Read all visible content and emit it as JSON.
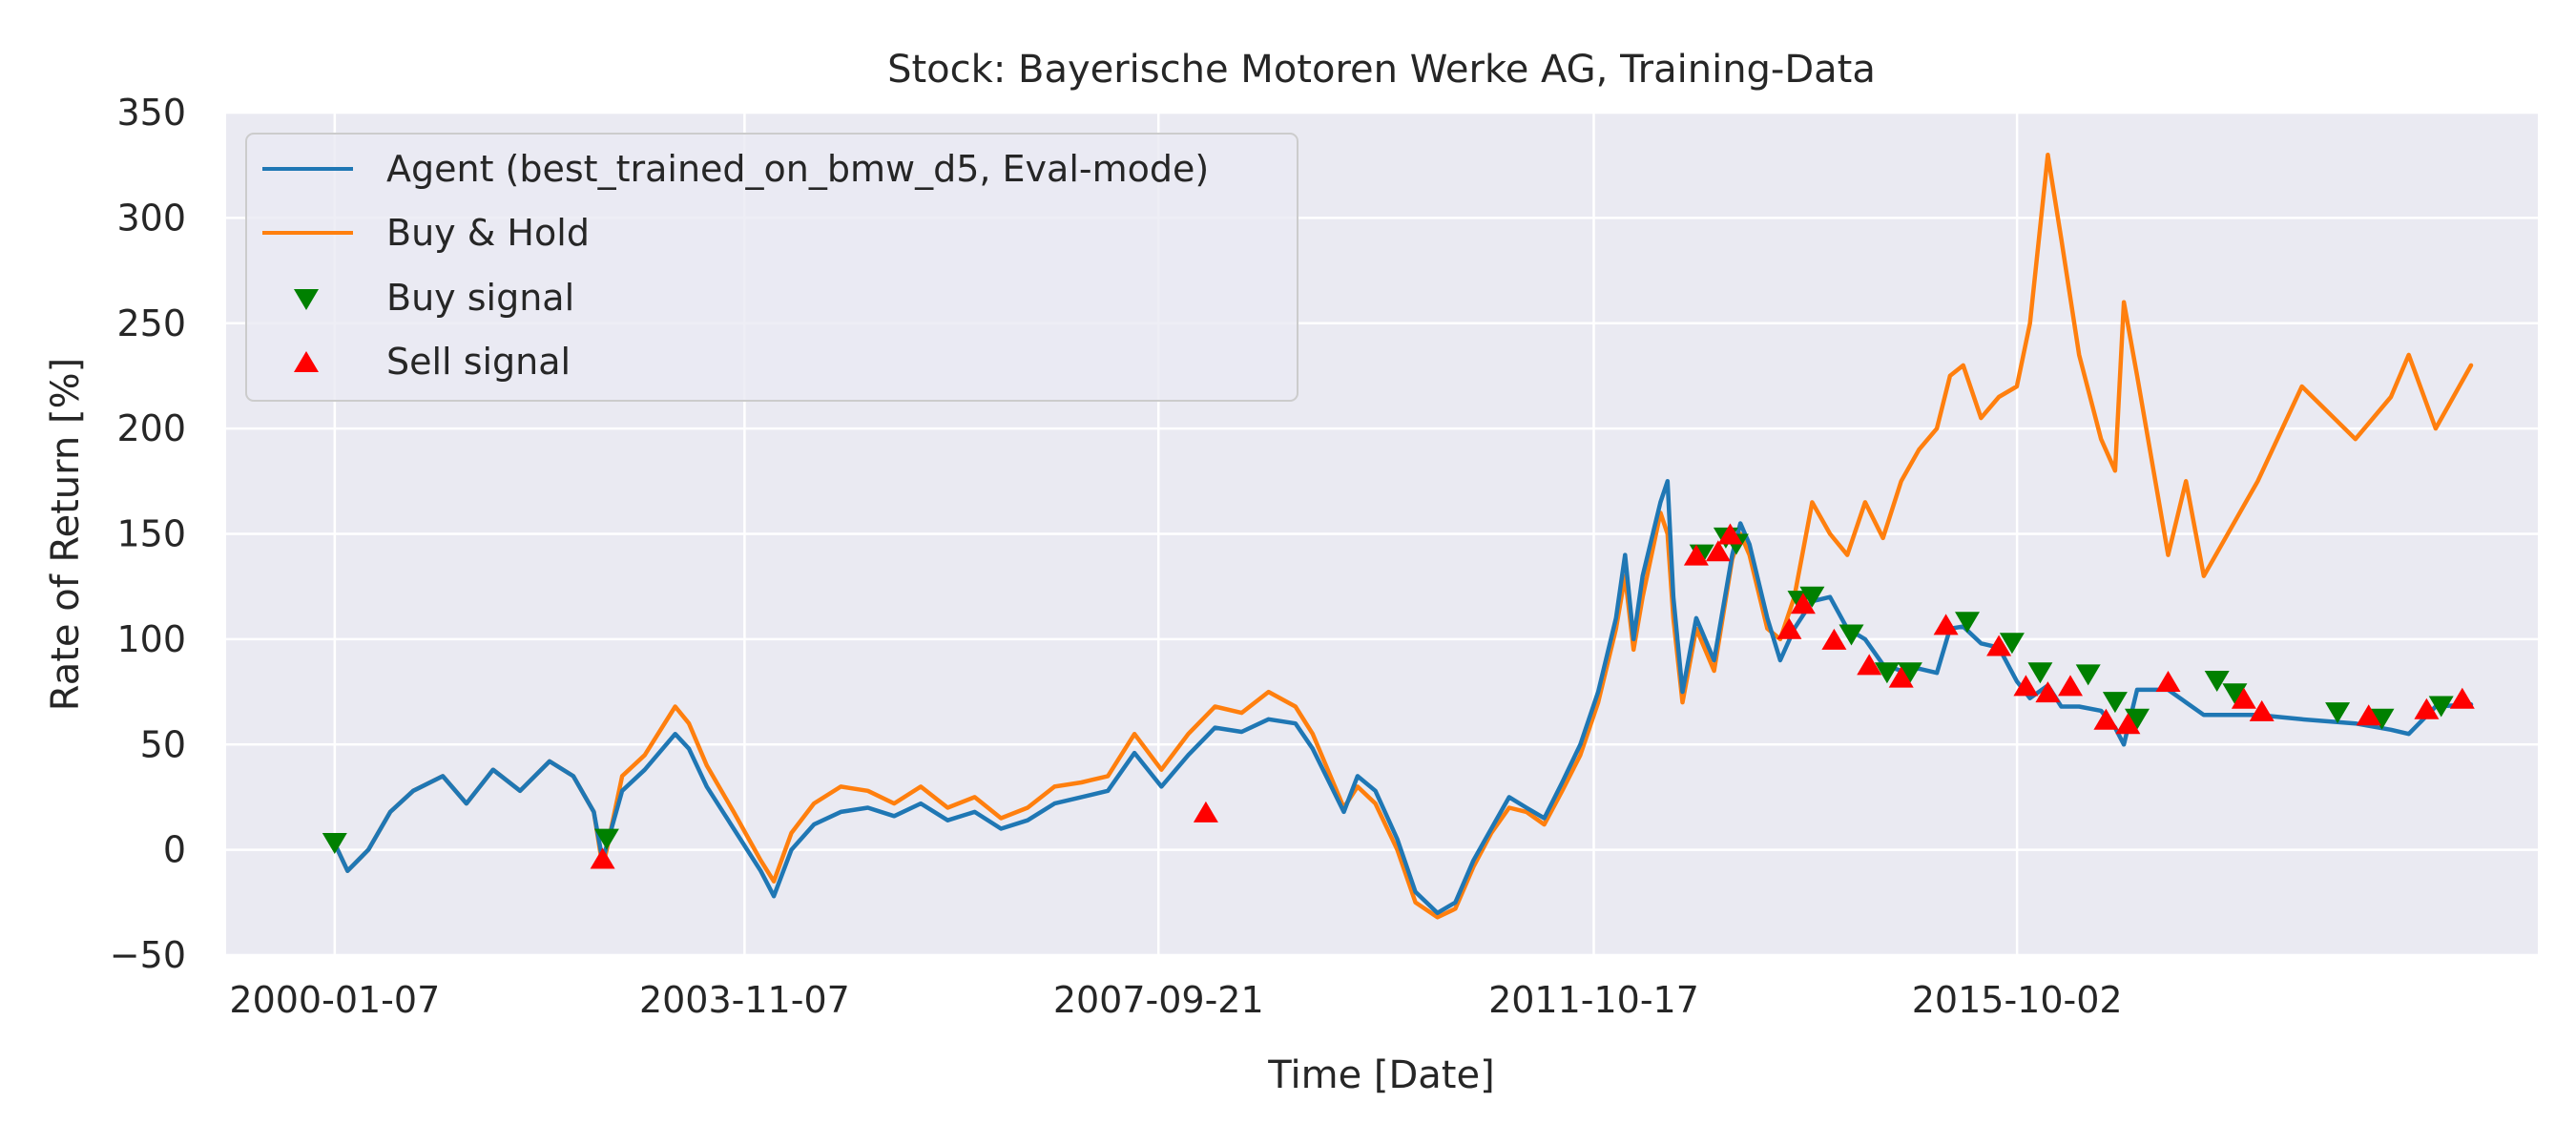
{
  "chart_data": {
    "type": "line",
    "title": "Stock: Bayerische Motoren Werke AG, Training-Data",
    "xlabel": "Time [Date]",
    "ylabel": "Rate of Return [%]",
    "ylim": [
      -50,
      350
    ],
    "xlim": [
      "1999-01-01",
      "2020-08-15"
    ],
    "grid": true,
    "background": "#eaeaf2",
    "legend_position": "top-left",
    "x_ticks": [
      "2000-01-07",
      "2003-11-07",
      "2007-09-21",
      "2011-10-17",
      "2015-10-02"
    ],
    "y_ticks": [
      -50,
      0,
      50,
      100,
      150,
      200,
      250,
      300,
      350
    ],
    "series": [
      {
        "name": "Agent (best_trained_on_bmw_d5, Eval-mode)",
        "color": "#1f77b4",
        "points": [
          [
            "2000-01-07",
            3
          ],
          [
            "2000-02-20",
            -10
          ],
          [
            "2000-05-01",
            0
          ],
          [
            "2000-07-15",
            18
          ],
          [
            "2000-10-01",
            28
          ],
          [
            "2001-01-10",
            35
          ],
          [
            "2001-04-01",
            22
          ],
          [
            "2001-07-01",
            38
          ],
          [
            "2001-10-01",
            28
          ],
          [
            "2002-01-10",
            42
          ],
          [
            "2002-04-01",
            35
          ],
          [
            "2002-06-10",
            18
          ],
          [
            "2002-07-10",
            -5
          ],
          [
            "2002-07-24",
            2
          ],
          [
            "2002-09-15",
            28
          ],
          [
            "2002-12-01",
            38
          ],
          [
            "2003-03-15",
            55
          ],
          [
            "2003-05-01",
            48
          ],
          [
            "2003-07-01",
            30
          ],
          [
            "2003-10-01",
            10
          ],
          [
            "2004-01-01",
            -10
          ],
          [
            "2004-02-15",
            -22
          ],
          [
            "2004-04-15",
            0
          ],
          [
            "2004-07-01",
            12
          ],
          [
            "2004-10-01",
            18
          ],
          [
            "2005-01-01",
            20
          ],
          [
            "2005-04-01",
            16
          ],
          [
            "2005-07-01",
            22
          ],
          [
            "2005-10-01",
            14
          ],
          [
            "2006-01-01",
            18
          ],
          [
            "2006-04-01",
            10
          ],
          [
            "2006-07-01",
            14
          ],
          [
            "2006-10-01",
            22
          ],
          [
            "2007-01-01",
            25
          ],
          [
            "2007-04-01",
            28
          ],
          [
            "2007-07-01",
            46
          ],
          [
            "2007-10-01",
            30
          ],
          [
            "2008-01-01",
            45
          ],
          [
            "2008-04-01",
            58
          ],
          [
            "2008-07-01",
            56
          ],
          [
            "2008-10-01",
            62
          ],
          [
            "2009-01-01",
            60
          ],
          [
            "2009-03-01",
            48
          ],
          [
            "2009-06-15",
            18
          ],
          [
            "2009-08-01",
            35
          ],
          [
            "2009-10-01",
            28
          ],
          [
            "2009-12-15",
            5
          ],
          [
            "2010-02-15",
            -20
          ],
          [
            "2010-05-01",
            -30
          ],
          [
            "2010-07-01",
            -25
          ],
          [
            "2010-09-01",
            -5
          ],
          [
            "2010-11-01",
            10
          ],
          [
            "2011-01-01",
            25
          ],
          [
            "2011-03-01",
            20
          ],
          [
            "2011-05-01",
            15
          ],
          [
            "2011-07-01",
            32
          ],
          [
            "2011-09-01",
            50
          ],
          [
            "2011-11-01",
            75
          ],
          [
            "2012-01-01",
            110
          ],
          [
            "2012-02-01",
            140
          ],
          [
            "2012-03-01",
            100
          ],
          [
            "2012-04-01",
            130
          ],
          [
            "2012-06-01",
            165
          ],
          [
            "2012-06-25",
            175
          ],
          [
            "2012-07-15",
            120
          ],
          [
            "2012-08-15",
            75
          ],
          [
            "2012-10-01",
            110
          ],
          [
            "2012-12-01",
            90
          ],
          [
            "2013-02-01",
            140
          ],
          [
            "2013-03-01",
            155
          ],
          [
            "2013-04-01",
            145
          ],
          [
            "2013-06-01",
            110
          ],
          [
            "2013-07-15",
            90
          ],
          [
            "2013-09-01",
            105
          ],
          [
            "2013-11-01",
            118
          ],
          [
            "2014-01-01",
            120
          ],
          [
            "2014-03-01",
            105
          ],
          [
            "2014-05-01",
            100
          ],
          [
            "2014-07-01",
            88
          ],
          [
            "2014-09-01",
            85
          ],
          [
            "2014-11-01",
            86
          ],
          [
            "2015-01-01",
            84
          ],
          [
            "2015-02-15",
            105
          ],
          [
            "2015-04-01",
            106
          ],
          [
            "2015-06-01",
            98
          ],
          [
            "2015-08-01",
            96
          ],
          [
            "2015-10-01",
            80
          ],
          [
            "2015-11-15",
            72
          ],
          [
            "2016-01-15",
            78
          ],
          [
            "2016-03-01",
            68
          ],
          [
            "2016-05-01",
            68
          ],
          [
            "2016-07-15",
            66
          ],
          [
            "2016-09-01",
            58
          ],
          [
            "2016-10-01",
            50
          ],
          [
            "2016-11-15",
            76
          ],
          [
            "2017-03-01",
            76
          ],
          [
            "2017-05-01",
            70
          ],
          [
            "2017-07-01",
            64
          ],
          [
            "2018-01-01",
            64
          ],
          [
            "2018-06-01",
            62
          ],
          [
            "2018-12-01",
            60
          ],
          [
            "2019-04-01",
            57
          ],
          [
            "2019-06-01",
            55
          ],
          [
            "2019-09-01",
            68
          ],
          [
            "2019-12-31",
            69
          ]
        ]
      },
      {
        "name": "Buy & Hold",
        "color": "#ff7f0e",
        "points": [
          [
            "2000-01-07",
            3
          ],
          [
            "2000-02-20",
            -10
          ],
          [
            "2000-05-01",
            0
          ],
          [
            "2000-07-15",
            18
          ],
          [
            "2000-10-01",
            28
          ],
          [
            "2001-01-10",
            35
          ],
          [
            "2001-04-01",
            22
          ],
          [
            "2001-07-01",
            38
          ],
          [
            "2001-10-01",
            28
          ],
          [
            "2002-01-10",
            42
          ],
          [
            "2002-04-01",
            35
          ],
          [
            "2002-06-10",
            18
          ],
          [
            "2002-07-10",
            -8
          ],
          [
            "2002-07-24",
            0
          ],
          [
            "2002-09-15",
            35
          ],
          [
            "2002-12-01",
            45
          ],
          [
            "2003-03-15",
            68
          ],
          [
            "2003-05-01",
            60
          ],
          [
            "2003-07-01",
            40
          ],
          [
            "2003-10-01",
            18
          ],
          [
            "2004-01-01",
            -5
          ],
          [
            "2004-02-15",
            -15
          ],
          [
            "2004-04-15",
            8
          ],
          [
            "2004-07-01",
            22
          ],
          [
            "2004-10-01",
            30
          ],
          [
            "2005-01-01",
            28
          ],
          [
            "2005-04-01",
            22
          ],
          [
            "2005-07-01",
            30
          ],
          [
            "2005-10-01",
            20
          ],
          [
            "2006-01-01",
            25
          ],
          [
            "2006-04-01",
            15
          ],
          [
            "2006-07-01",
            20
          ],
          [
            "2006-10-01",
            30
          ],
          [
            "2007-01-01",
            32
          ],
          [
            "2007-04-01",
            35
          ],
          [
            "2007-07-01",
            55
          ],
          [
            "2007-10-01",
            38
          ],
          [
            "2008-01-01",
            55
          ],
          [
            "2008-04-01",
            68
          ],
          [
            "2008-07-01",
            65
          ],
          [
            "2008-10-01",
            75
          ],
          [
            "2009-01-01",
            68
          ],
          [
            "2009-03-01",
            55
          ],
          [
            "2009-06-15",
            20
          ],
          [
            "2009-08-01",
            30
          ],
          [
            "2009-10-01",
            22
          ],
          [
            "2009-12-15",
            0
          ],
          [
            "2010-02-15",
            -25
          ],
          [
            "2010-05-01",
            -32
          ],
          [
            "2010-07-01",
            -28
          ],
          [
            "2010-09-01",
            -8
          ],
          [
            "2010-11-01",
            8
          ],
          [
            "2011-01-01",
            20
          ],
          [
            "2011-03-01",
            18
          ],
          [
            "2011-05-01",
            12
          ],
          [
            "2011-07-01",
            28
          ],
          [
            "2011-09-01",
            45
          ],
          [
            "2011-11-01",
            70
          ],
          [
            "2012-01-01",
            105
          ],
          [
            "2012-02-01",
            130
          ],
          [
            "2012-03-01",
            95
          ],
          [
            "2012-04-01",
            120
          ],
          [
            "2012-06-01",
            160
          ],
          [
            "2012-06-25",
            150
          ],
          [
            "2012-07-15",
            110
          ],
          [
            "2012-08-15",
            70
          ],
          [
            "2012-10-01",
            105
          ],
          [
            "2012-12-01",
            85
          ],
          [
            "2013-02-01",
            138
          ],
          [
            "2013-03-01",
            150
          ],
          [
            "2013-04-01",
            140
          ],
          [
            "2013-06-01",
            105
          ],
          [
            "2013-07-15",
            100
          ],
          [
            "2013-09-01",
            120
          ],
          [
            "2013-11-01",
            165
          ],
          [
            "2014-01-01",
            150
          ],
          [
            "2014-03-01",
            140
          ],
          [
            "2014-05-01",
            165
          ],
          [
            "2014-07-01",
            148
          ],
          [
            "2014-09-01",
            175
          ],
          [
            "2014-11-01",
            190
          ],
          [
            "2015-01-01",
            200
          ],
          [
            "2015-02-15",
            225
          ],
          [
            "2015-04-01",
            230
          ],
          [
            "2015-06-01",
            205
          ],
          [
            "2015-08-01",
            215
          ],
          [
            "2015-10-01",
            220
          ],
          [
            "2015-11-15",
            250
          ],
          [
            "2016-01-15",
            330
          ],
          [
            "2016-03-01",
            290
          ],
          [
            "2016-05-01",
            235
          ],
          [
            "2016-07-15",
            195
          ],
          [
            "2016-09-01",
            180
          ],
          [
            "2016-10-01",
            260
          ],
          [
            "2016-11-15",
            225
          ],
          [
            "2017-03-01",
            140
          ],
          [
            "2017-05-01",
            175
          ],
          [
            "2017-07-01",
            130
          ],
          [
            "2018-01-01",
            175
          ],
          [
            "2018-06-01",
            220
          ],
          [
            "2018-12-01",
            195
          ],
          [
            "2019-04-01",
            215
          ],
          [
            "2019-06-01",
            235
          ],
          [
            "2019-09-01",
            200
          ],
          [
            "2019-12-31",
            230
          ]
        ]
      }
    ],
    "markers": [
      {
        "name": "Buy signal",
        "color": "#008000",
        "shape": "triangle-down",
        "points": [
          [
            "2000-01-07",
            3
          ],
          [
            "2002-07-24",
            5
          ],
          [
            "2012-10-20",
            140
          ],
          [
            "2013-01-10",
            148
          ],
          [
            "2013-02-15",
            145
          ],
          [
            "2013-09-20",
            118
          ],
          [
            "2013-11-01",
            120
          ],
          [
            "2014-03-15",
            102
          ],
          [
            "2014-07-15",
            84
          ],
          [
            "2014-10-01",
            84
          ],
          [
            "2015-04-15",
            108
          ],
          [
            "2015-09-15",
            98
          ],
          [
            "2015-12-20",
            84
          ],
          [
            "2016-06-01",
            83
          ],
          [
            "2016-09-01",
            70
          ],
          [
            "2016-11-15",
            62
          ],
          [
            "2017-08-15",
            80
          ],
          [
            "2017-10-15",
            74
          ],
          [
            "2018-10-01",
            65
          ],
          [
            "2019-03-01",
            62
          ],
          [
            "2019-09-20",
            68
          ]
        ]
      },
      {
        "name": "Sell signal",
        "color": "#ff0000",
        "shape": "triangle-up",
        "points": [
          [
            "2002-07-10",
            -4
          ],
          [
            "2008-03-01",
            18
          ],
          [
            "2012-10-01",
            140
          ],
          [
            "2012-12-15",
            142
          ],
          [
            "2013-01-25",
            150
          ],
          [
            "2013-08-15",
            105
          ],
          [
            "2013-10-01",
            117
          ],
          [
            "2014-01-15",
            100
          ],
          [
            "2014-05-15",
            88
          ],
          [
            "2014-09-01",
            82
          ],
          [
            "2015-02-01",
            107
          ],
          [
            "2015-08-01",
            97
          ],
          [
            "2015-11-01",
            78
          ],
          [
            "2016-01-15",
            75
          ],
          [
            "2016-04-01",
            78
          ],
          [
            "2016-08-01",
            62
          ],
          [
            "2016-10-15",
            60
          ],
          [
            "2017-03-01",
            80
          ],
          [
            "2017-11-15",
            72
          ],
          [
            "2018-01-15",
            66
          ],
          [
            "2019-01-15",
            64
          ],
          [
            "2019-08-01",
            67
          ],
          [
            "2019-12-01",
            72
          ]
        ]
      }
    ]
  }
}
